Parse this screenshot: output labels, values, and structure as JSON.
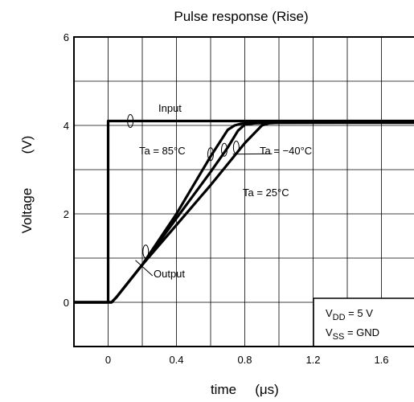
{
  "chart_data": {
    "type": "line",
    "title": "Pulse response    (Rise)",
    "xlabel": "time",
    "xlabel_unit": "(μs)",
    "ylabel": "Voltage",
    "ylabel_unit": "(V)",
    "xlim": [
      -0.2,
      1.8
    ],
    "ylim": [
      -1,
      6
    ],
    "x_ticks": [
      0,
      0.4,
      0.8,
      1.2,
      1.6
    ],
    "x_tick_labels": [
      "0",
      "0.4",
      "0.8",
      "1.2",
      "1.6"
    ],
    "y_ticks": [
      0,
      2,
      4,
      6
    ],
    "y_tick_labels": [
      "0",
      "2",
      "4",
      "6"
    ],
    "x_grid": [
      -0.2,
      0,
      0.2,
      0.4,
      0.6,
      0.8,
      1.0,
      1.2,
      1.4,
      1.6,
      1.8
    ],
    "y_grid": [
      -1,
      0,
      1,
      2,
      3,
      4,
      5,
      6
    ],
    "grid": true,
    "series": [
      {
        "name": "Input",
        "x": [
          -0.2,
          0.0,
          0.0,
          1.8
        ],
        "y": [
          0,
          0,
          4.1,
          4.1
        ]
      },
      {
        "name": "Ta = 85°C",
        "x": [
          -0.2,
          0.02,
          0.05,
          0.2,
          0.4,
          0.6,
          0.7,
          0.74,
          0.78,
          0.85,
          1.0,
          1.8
        ],
        "y": [
          0,
          0,
          0.12,
          0.85,
          2.0,
          3.3,
          3.9,
          4.0,
          4.04,
          4.06,
          4.07,
          4.08
        ]
      },
      {
        "name": "Ta = 25°C",
        "x": [
          -0.2,
          0.02,
          0.05,
          0.2,
          0.4,
          0.6,
          0.7,
          0.76,
          0.8,
          0.86,
          1.0,
          1.8
        ],
        "y": [
          0,
          0,
          0.12,
          0.85,
          1.9,
          2.95,
          3.5,
          3.88,
          4.02,
          4.05,
          4.06,
          4.07
        ]
      },
      {
        "name": "Ta = −40°C",
        "x": [
          -0.2,
          0.02,
          0.05,
          0.2,
          0.4,
          0.6,
          0.8,
          0.9,
          0.94,
          1.0,
          1.8
        ],
        "y": [
          0,
          0,
          0.12,
          0.85,
          1.75,
          2.65,
          3.6,
          4.0,
          4.05,
          4.06,
          4.06
        ]
      }
    ],
    "annotations": {
      "input": "Input",
      "ta85": "Ta = 85°C",
      "ta25": "Ta = 25°C",
      "ta40": "Ta = −40°C",
      "output": "Output"
    },
    "legend_box": {
      "vdd_prefix": "V",
      "vdd_sub": "DD",
      "vdd_value": " = 5 V",
      "vss_prefix": "V",
      "vss_sub": "SS",
      "vss_value": " = GND"
    }
  }
}
